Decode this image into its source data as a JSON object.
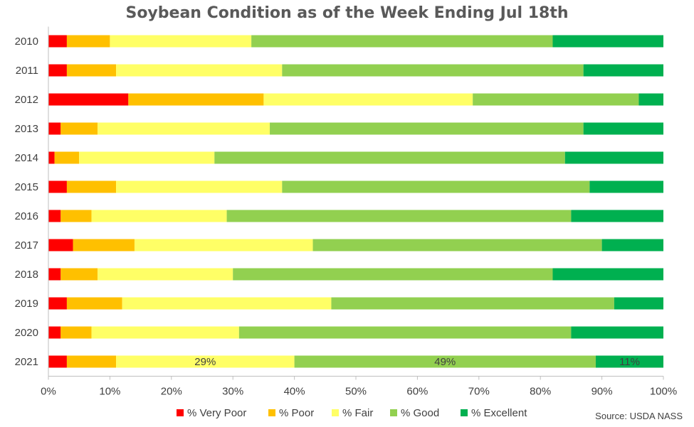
{
  "chart_data": {
    "type": "bar",
    "orientation": "horizontal",
    "stacked": true,
    "title": "Soybean Condition as of the Week Ending Jul 18th",
    "categories": [
      "2010",
      "2011",
      "2012",
      "2013",
      "2014",
      "2015",
      "2016",
      "2017",
      "2018",
      "2019",
      "2020",
      "2021"
    ],
    "series": [
      {
        "name": "% Very Poor",
        "color": "#ff0000",
        "values": [
          3,
          3,
          13,
          2,
          1,
          3,
          2,
          4,
          2,
          3,
          2,
          3
        ]
      },
      {
        "name": "% Poor",
        "color": "#ffc000",
        "values": [
          7,
          8,
          22,
          6,
          4,
          8,
          5,
          10,
          6,
          9,
          5,
          8
        ]
      },
      {
        "name": "% Fair",
        "color": "#ffff66",
        "values": [
          23,
          27,
          34,
          28,
          22,
          27,
          22,
          29,
          22,
          34,
          24,
          29
        ]
      },
      {
        "name": "% Good",
        "color": "#92d050",
        "values": [
          49,
          49,
          27,
          51,
          57,
          50,
          56,
          47,
          52,
          46,
          54,
          49
        ]
      },
      {
        "name": "% Excellent",
        "color": "#00b050",
        "values": [
          18,
          13,
          4,
          13,
          16,
          12,
          15,
          10,
          18,
          8,
          15,
          11
        ]
      }
    ],
    "data_labels": {
      "category": "2021",
      "series": [
        "% Fair",
        "% Good",
        "% Excellent"
      ],
      "texts": [
        "29%",
        "49%",
        "11%"
      ]
    },
    "xlim": [
      0,
      100
    ],
    "x_ticks": [
      "0%",
      "10%",
      "20%",
      "30%",
      "40%",
      "50%",
      "60%",
      "70%",
      "80%",
      "90%",
      "100%"
    ],
    "xlabel": "",
    "ylabel": "",
    "grid": false,
    "legend_position": "bottom"
  },
  "source": "Source: USDA NASS"
}
